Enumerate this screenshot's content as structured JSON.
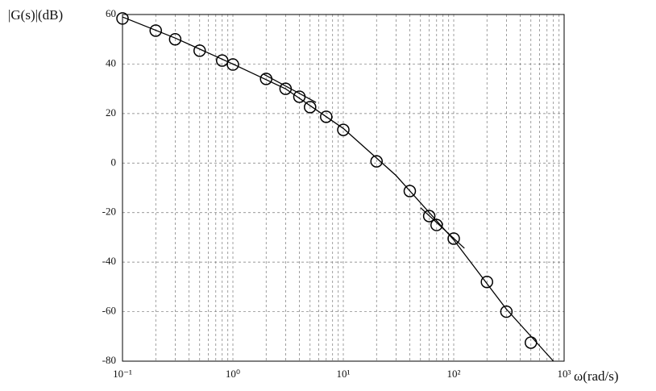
{
  "chart_data": {
    "type": "line",
    "y_label": "|G(s)|(dB)",
    "x_label": "ω(rad/s)",
    "xscale": "log",
    "xlim": [
      0.1,
      1000
    ],
    "ylim": [
      -80,
      60
    ],
    "xticks": [
      {
        "value": 0.1,
        "label": "10⁻¹"
      },
      {
        "value": 1,
        "label": "10⁰"
      },
      {
        "value": 10,
        "label": "10¹"
      },
      {
        "value": 100,
        "label": "10²"
      },
      {
        "value": 1000,
        "label": "10³"
      }
    ],
    "yticks": [
      -80,
      -60,
      -40,
      -20,
      0,
      20,
      40,
      60
    ],
    "x_minor_grid": [
      0.2,
      0.3,
      0.4,
      0.5,
      0.6,
      0.7,
      0.8,
      0.9,
      2,
      3,
      4,
      5,
      6,
      7,
      8,
      9,
      20,
      30,
      40,
      50,
      60,
      70,
      80,
      90,
      200,
      300,
      400,
      500,
      600,
      700,
      800,
      900
    ],
    "grid": true,
    "series": [
      {
        "color": "#000000",
        "marker": "circle",
        "x": [
          0.1,
          0.2,
          0.3,
          0.5,
          0.8,
          1,
          2,
          3,
          4,
          5,
          7,
          10,
          20,
          40,
          60,
          70,
          100,
          200,
          300,
          500
        ],
        "values": [
          58.4,
          53.5,
          50,
          45.4,
          41.4,
          39.8,
          34,
          30,
          26.8,
          22.6,
          18.7,
          13.4,
          0.7,
          -11.3,
          -21.4,
          -25,
          -30.5,
          -48,
          -60,
          -72.5
        ]
      },
      {
        "color": "#000000",
        "marker": null,
        "x": [
          0.1,
          0.3,
          1,
          3,
          10,
          30,
          100,
          300,
          800
        ],
        "values": [
          59,
          50.5,
          40,
          30,
          14,
          -5,
          -31,
          -59,
          -80
        ]
      },
      {
        "color": "#000000",
        "marker": null,
        "x": [
          1.9,
          5.66
        ],
        "values": [
          35.9,
          24.5
        ]
      },
      {
        "color": "#000000",
        "marker": null,
        "x": [
          50,
          125
        ],
        "values": [
          -18,
          -34.4
        ]
      }
    ]
  }
}
